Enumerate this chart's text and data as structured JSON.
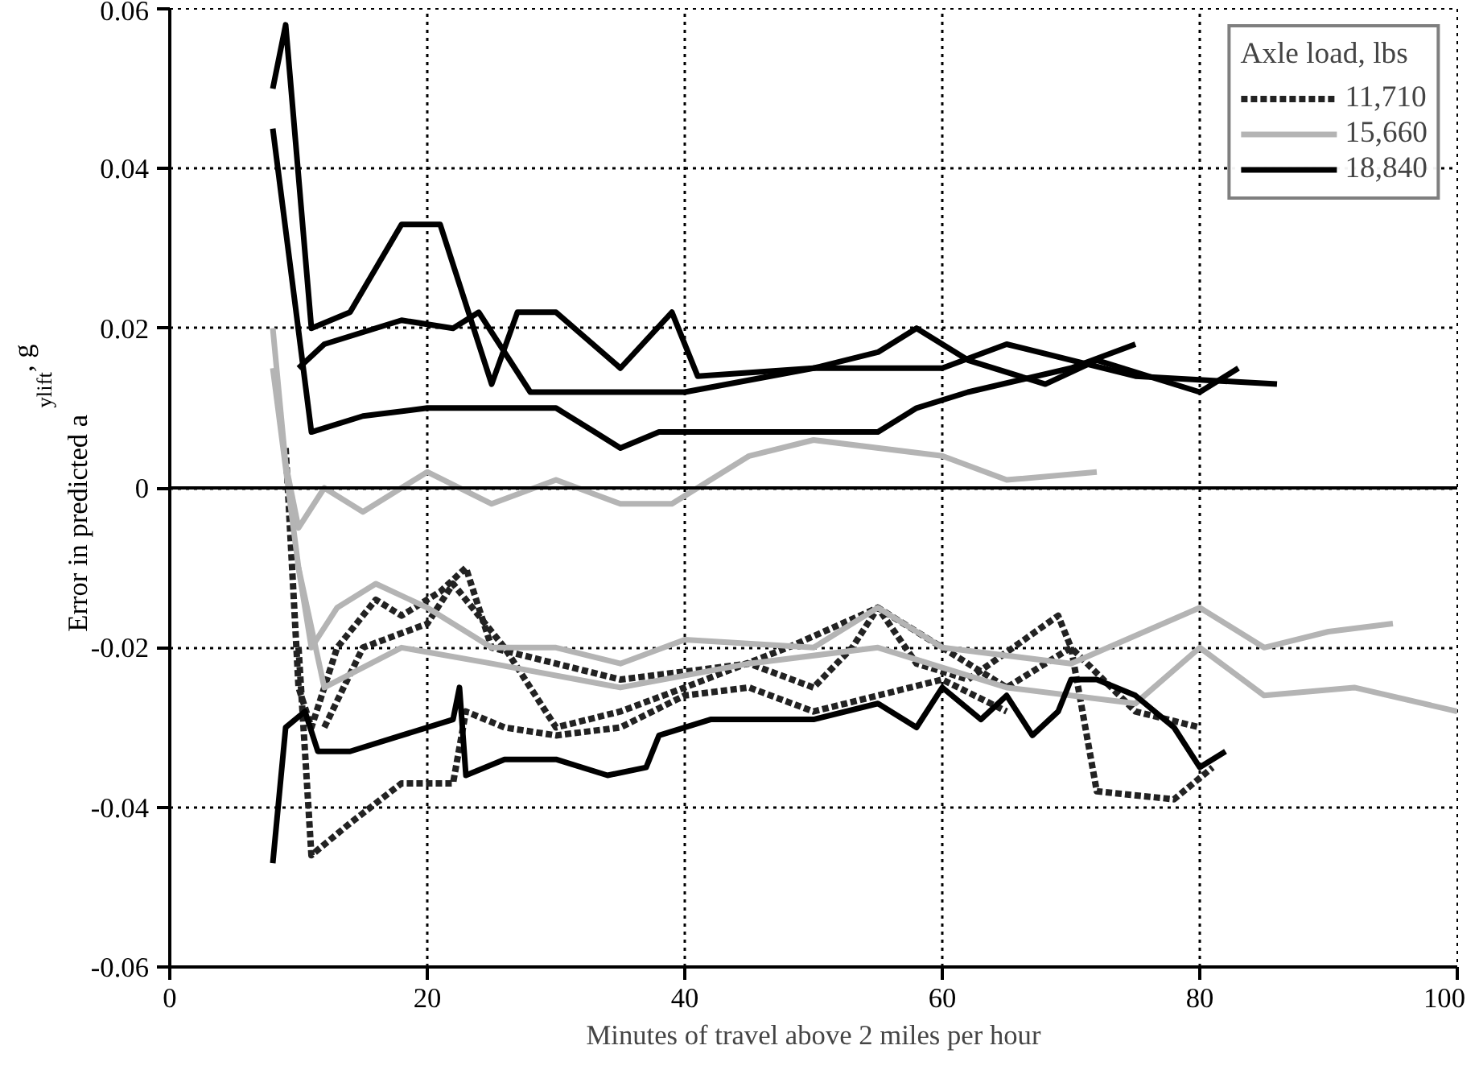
{
  "chart_data": {
    "type": "line",
    "xlabel": "Minutes of travel above 2 miles per hour",
    "ylabel": "Error in predicted a$_{ylift}$, g",
    "legend_title": "Axle load, lbs",
    "xlim": [
      0,
      100
    ],
    "xticks": [
      0,
      20,
      40,
      60,
      80,
      100
    ],
    "ylim": [
      -0.06,
      0.06
    ],
    "yticks": [
      -0.06,
      -0.04,
      -0.02,
      0,
      0.02,
      0.04,
      0.06
    ],
    "grid": true,
    "legend": "top right",
    "ref_lines": [
      {
        "axis": "y",
        "value": 0,
        "color": "#000000",
        "line_style": "solid"
      }
    ],
    "series": [
      {
        "name": "11,710",
        "color": "#222222",
        "line_style": "dashed",
        "x": [
          9,
          10,
          11,
          13,
          16,
          18,
          21,
          23,
          25,
          30,
          35,
          40,
          45,
          50,
          53,
          55,
          58,
          62,
          69,
          70,
          72,
          78,
          81
        ],
        "values": [
          0.005,
          -0.025,
          -0.03,
          -0.02,
          -0.014,
          -0.016,
          -0.013,
          -0.01,
          -0.02,
          -0.022,
          -0.024,
          -0.023,
          -0.022,
          -0.025,
          -0.02,
          -0.015,
          -0.022,
          -0.024,
          -0.016,
          -0.02,
          -0.038,
          -0.039,
          -0.035
        ]
      },
      {
        "color": "#222222",
        "line_style": "dashed",
        "x": [
          10,
          11,
          14,
          18,
          22,
          23,
          26,
          30,
          35,
          40,
          45,
          50,
          55,
          60,
          65
        ],
        "values": [
          -0.02,
          -0.046,
          -0.042,
          -0.037,
          -0.037,
          -0.028,
          -0.03,
          -0.031,
          -0.03,
          -0.026,
          -0.025,
          -0.028,
          -0.026,
          -0.024,
          -0.028
        ]
      },
      {
        "color": "#222222",
        "line_style": "dashed",
        "x": [
          12,
          15,
          20,
          22,
          26,
          30,
          35,
          40,
          48,
          55,
          60,
          65,
          70,
          75,
          80
        ],
        "values": [
          -0.03,
          -0.02,
          -0.017,
          -0.012,
          -0.02,
          -0.03,
          -0.028,
          -0.025,
          -0.02,
          -0.015,
          -0.02,
          -0.025,
          -0.02,
          -0.028,
          -0.03
        ]
      },
      {
        "name": "15,660",
        "color": "#b4b4b4",
        "line_style": "solid",
        "x": [
          8,
          9,
          10,
          12,
          15,
          20,
          25,
          30,
          35,
          39,
          45,
          50,
          60,
          65,
          72
        ],
        "values": [
          0.02,
          0.003,
          -0.005,
          0.0,
          -0.003,
          0.002,
          -0.002,
          0.001,
          -0.002,
          -0.002,
          0.004,
          0.006,
          0.004,
          0.001,
          0.002
        ]
      },
      {
        "color": "#b4b4b4",
        "line_style": "solid",
        "x": [
          8,
          10,
          11,
          13,
          16,
          20,
          25,
          30,
          35,
          40,
          50,
          55,
          60,
          70,
          80,
          85,
          90,
          95
        ],
        "values": [
          0.015,
          -0.01,
          -0.02,
          -0.015,
          -0.012,
          -0.015,
          -0.02,
          -0.02,
          -0.022,
          -0.019,
          -0.02,
          -0.015,
          -0.02,
          -0.022,
          -0.015,
          -0.02,
          -0.018,
          -0.017
        ]
      },
      {
        "color": "#b4b4b4",
        "line_style": "solid",
        "x": [
          10,
          12,
          18,
          25,
          35,
          45,
          55,
          65,
          75,
          80,
          85,
          92,
          100
        ],
        "values": [
          -0.01,
          -0.025,
          -0.02,
          -0.022,
          -0.025,
          -0.022,
          -0.02,
          -0.025,
          -0.027,
          -0.02,
          -0.026,
          -0.025,
          -0.028
        ]
      },
      {
        "name": "18,840",
        "color": "#000000",
        "line_style": "solid",
        "x": [
          8,
          9,
          11,
          14,
          18,
          21,
          25,
          27,
          30,
          35,
          39,
          41,
          50,
          60,
          65,
          75,
          86
        ],
        "values": [
          0.05,
          0.058,
          0.02,
          0.022,
          0.033,
          0.033,
          0.013,
          0.022,
          0.022,
          0.015,
          0.022,
          0.014,
          0.015,
          0.015,
          0.018,
          0.014,
          0.013
        ]
      },
      {
        "color": "#000000",
        "line_style": "solid",
        "x": [
          8,
          11,
          15,
          20,
          30,
          33,
          35,
          38,
          55,
          58,
          62,
          70,
          75
        ],
        "values": [
          0.045,
          0.007,
          0.009,
          0.01,
          0.01,
          0.007,
          0.005,
          0.007,
          0.007,
          0.01,
          0.012,
          0.015,
          0.018
        ]
      },
      {
        "color": "#000000",
        "line_style": "solid",
        "x": [
          10,
          12,
          18,
          22,
          24,
          28,
          40,
          50,
          55,
          58,
          62,
          68,
          72,
          80,
          83
        ],
        "values": [
          0.015,
          0.018,
          0.021,
          0.02,
          0.022,
          0.012,
          0.012,
          0.015,
          0.017,
          0.02,
          0.016,
          0.013,
          0.016,
          0.012,
          0.015
        ]
      },
      {
        "color": "#000000",
        "line_style": "solid",
        "x": [
          8,
          9,
          10.5,
          11.5,
          14,
          18,
          22,
          22.5,
          23,
          26,
          30,
          34,
          37,
          38,
          42,
          50,
          55,
          58,
          60,
          63,
          65,
          67,
          69,
          70,
          72,
          75,
          78,
          80,
          82
        ],
        "values": [
          -0.047,
          -0.03,
          -0.028,
          -0.033,
          -0.033,
          -0.031,
          -0.029,
          -0.025,
          -0.036,
          -0.034,
          -0.034,
          -0.036,
          -0.035,
          -0.031,
          -0.029,
          -0.029,
          -0.027,
          -0.03,
          -0.025,
          -0.029,
          -0.026,
          -0.031,
          -0.028,
          -0.024,
          -0.024,
          -0.026,
          -0.03,
          -0.035,
          -0.033
        ]
      }
    ]
  }
}
